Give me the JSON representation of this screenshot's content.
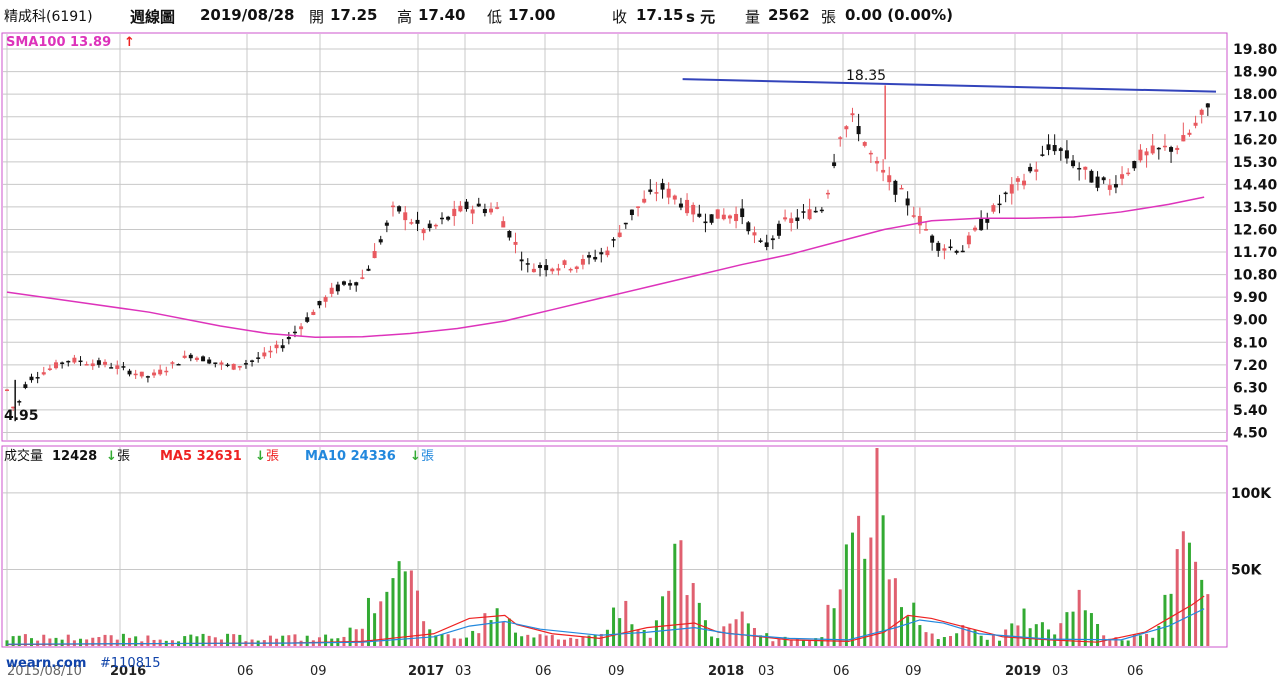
{
  "header": {
    "stock": "精成科(6191)",
    "period": "週線圖",
    "date": "2019/08/28",
    "open_label": "開",
    "open": "17.25",
    "high_label": "高",
    "high": "17.40",
    "low_label": "低",
    "low": "17.00",
    "close_label": "收",
    "close": "17.15",
    "close_unit": "s 元",
    "vol_label": "量",
    "vol": "2562",
    "vol_unit": "張",
    "change": "0.00 (0.00%)"
  },
  "indicators": {
    "sma": "SMA100 13.89",
    "sma_arrow": "↑",
    "vol_label": "成交量",
    "vol_value": "12428",
    "ma5": "MA5 32631",
    "ma10": "MA10 24336",
    "unit": "張",
    "down_arrow": "↓"
  },
  "colors": {
    "up": "#e8595f",
    "down": "#111111",
    "sma": "#dd33bb",
    "trend": "#3344bb",
    "ma5": "#ee2222",
    "ma10": "#2288dd",
    "vol_up": "#e06070",
    "vol_down": "#33aa33",
    "grid": "#c8c8c8",
    "border": "#cc55cc"
  },
  "annotations": {
    "high_label": "18.35",
    "low_label": "4.95"
  },
  "watermark": "wearn.com",
  "watermark_id": "#110815",
  "chart_data": {
    "type": "candlestick",
    "price_ticks": [
      "19.80",
      "18.90",
      "18.00",
      "17.10",
      "16.20",
      "15.30",
      "14.40",
      "13.50",
      "12.60",
      "11.70",
      "10.80",
      "9.90",
      "9.00",
      "8.10",
      "7.20",
      "6.30",
      "5.40",
      "4.50"
    ],
    "price_ylim": [
      4.2,
      20.4
    ],
    "volume_ticks": [
      "100K",
      "50K"
    ],
    "volume_ylim": [
      0,
      130000
    ],
    "x_labels": [
      "2015/08/10",
      "2016",
      "06",
      "09",
      "2017",
      "03",
      "06",
      "09",
      "2018",
      "03",
      "06",
      "09",
      "2019",
      "03",
      "06"
    ],
    "series": [
      {
        "name": "SMA100",
        "values": [
          [
            0,
            10.1
          ],
          [
            30,
            9.7
          ],
          [
            60,
            9.3
          ],
          [
            90,
            8.75
          ],
          [
            110,
            8.45
          ],
          [
            130,
            8.3
          ],
          [
            150,
            8.32
          ],
          [
            170,
            8.45
          ],
          [
            190,
            8.65
          ],
          [
            210,
            8.95
          ],
          [
            230,
            9.4
          ],
          [
            250,
            9.85
          ],
          [
            270,
            10.3
          ],
          [
            290,
            10.75
          ],
          [
            310,
            11.2
          ],
          [
            330,
            11.6
          ],
          [
            350,
            12.1
          ],
          [
            370,
            12.6
          ],
          [
            390,
            12.95
          ],
          [
            410,
            13.05
          ],
          [
            430,
            13.05
          ],
          [
            450,
            13.1
          ],
          [
            470,
            13.3
          ],
          [
            490,
            13.6
          ],
          [
            505,
            13.89
          ]
        ]
      },
      {
        "name": "MA5",
        "values": [
          [
            0,
            1000
          ],
          [
            60,
            1500
          ],
          [
            120,
            2000
          ],
          [
            150,
            3000
          ],
          [
            180,
            8000
          ],
          [
            195,
            18000
          ],
          [
            210,
            20000
          ],
          [
            215,
            14000
          ],
          [
            230,
            8000
          ],
          [
            250,
            5000
          ],
          [
            270,
            12000
          ],
          [
            290,
            15000
          ],
          [
            300,
            9000
          ],
          [
            330,
            4000
          ],
          [
            355,
            3000
          ],
          [
            370,
            9000
          ],
          [
            380,
            20000
          ],
          [
            390,
            18000
          ],
          [
            400,
            14000
          ],
          [
            420,
            6000
          ],
          [
            440,
            4000
          ],
          [
            460,
            2500
          ],
          [
            480,
            9000
          ],
          [
            490,
            18000
          ],
          [
            500,
            27000
          ],
          [
            505,
            32631
          ]
        ]
      },
      {
        "name": "MA10",
        "values": [
          [
            0,
            1200
          ],
          [
            60,
            1600
          ],
          [
            120,
            1900
          ],
          [
            150,
            2500
          ],
          [
            180,
            6000
          ],
          [
            195,
            13000
          ],
          [
            210,
            16000
          ],
          [
            225,
            11000
          ],
          [
            250,
            7000
          ],
          [
            270,
            9000
          ],
          [
            290,
            12000
          ],
          [
            305,
            8000
          ],
          [
            330,
            5000
          ],
          [
            355,
            4000
          ],
          [
            375,
            12000
          ],
          [
            385,
            17000
          ],
          [
            395,
            15000
          ],
          [
            410,
            8000
          ],
          [
            440,
            4500
          ],
          [
            470,
            4000
          ],
          [
            490,
            13000
          ],
          [
            505,
            24336
          ]
        ]
      }
    ],
    "trend_line": [
      [
        285,
        18.6
      ],
      [
        510,
        18.1
      ]
    ],
    "high_point": 18.35,
    "low_point": 4.95
  }
}
